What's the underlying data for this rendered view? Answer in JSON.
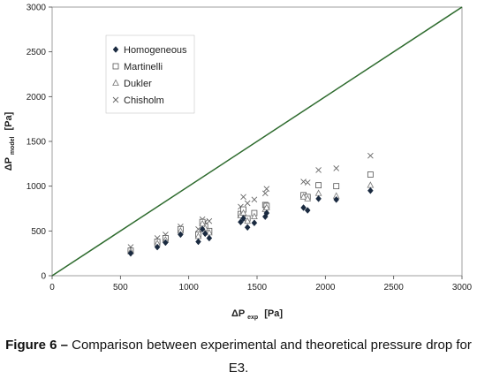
{
  "chart_data": {
    "type": "scatter",
    "xlabel_main": "ΔP",
    "xlabel_sub": "exp",
    "xlabel_unit": "[Pa]",
    "ylabel_main": "ΔP",
    "ylabel_sub": "model",
    "ylabel_unit": "[Pa]",
    "xlim": [
      0,
      3000
    ],
    "ylim": [
      0,
      3000
    ],
    "xticks": [
      0,
      500,
      1000,
      1500,
      2000,
      2500,
      3000
    ],
    "yticks": [
      0,
      500,
      1000,
      1500,
      2000,
      2500,
      3000
    ],
    "grid": false,
    "legend_position": "top-left",
    "reference_line": {
      "from": [
        0,
        0
      ],
      "to": [
        3000,
        3000
      ],
      "color": "#2e6b2e"
    },
    "x": [
      575,
      770,
      830,
      940,
      1070,
      1100,
      1120,
      1150,
      1380,
      1400,
      1430,
      1480,
      1560,
      1570,
      1840,
      1870,
      1950,
      2080,
      2330
    ],
    "series": [
      {
        "name": "Homogeneous",
        "marker": "diamond",
        "y": [
          250,
          320,
          370,
          460,
          380,
          520,
          470,
          420,
          600,
          640,
          540,
          590,
          660,
          700,
          760,
          730,
          860,
          850,
          950
        ]
      },
      {
        "name": "Martinelli",
        "marker": "square",
        "y": [
          280,
          380,
          420,
          520,
          460,
          600,
          550,
          500,
          690,
          740,
          640,
          700,
          790,
          780,
          900,
          880,
          1010,
          1000,
          1130
        ]
      },
      {
        "name": "Dukler",
        "marker": "triangle",
        "y": [
          270,
          360,
          400,
          500,
          440,
          580,
          530,
          480,
          670,
          700,
          610,
          660,
          740,
          760,
          880,
          860,
          920,
          890,
          1010
        ]
      },
      {
        "name": "Chisholm",
        "marker": "x",
        "y": [
          320,
          420,
          460,
          550,
          520,
          630,
          600,
          610,
          770,
          880,
          810,
          850,
          920,
          970,
          1050,
          1040,
          1180,
          1200,
          1340
        ]
      }
    ]
  },
  "caption": {
    "label": "Figure 6 –",
    "text": " Comparison between experimental and theoretical pressure drop for E3."
  }
}
